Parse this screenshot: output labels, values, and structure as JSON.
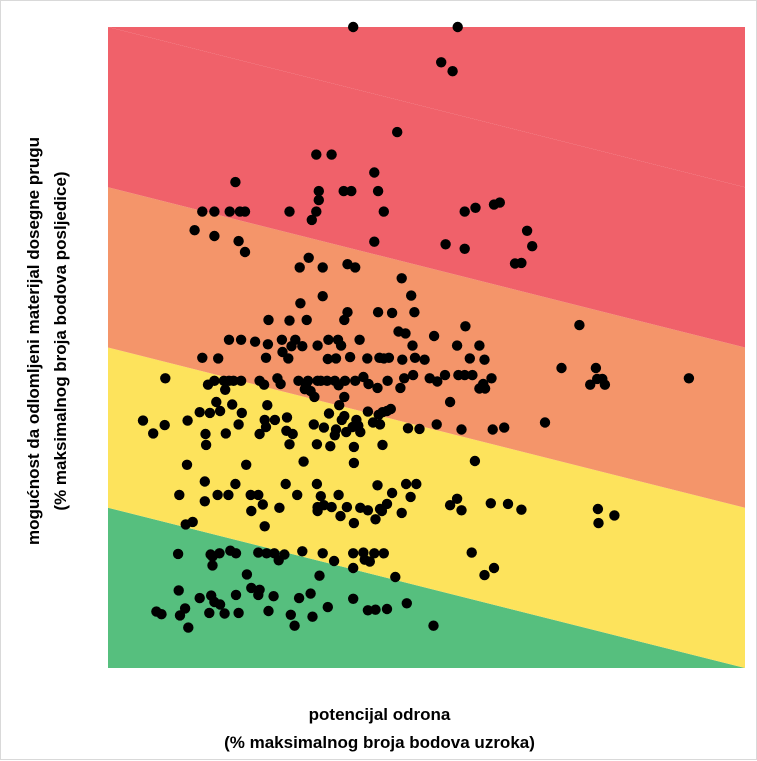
{
  "chart_data": {
    "type": "scatter",
    "title": "",
    "xlabel": [
      "potencijal odrona",
      "(% maksimalnog broja bodova uzroka)"
    ],
    "ylabel": [
      "mogućnost da odlomljeni materijal dosegne prugu",
      "(% maksimalnog broja bodova posljedice)"
    ],
    "xlim": [
      0,
      100
    ],
    "ylim": [
      0,
      100
    ],
    "grid": false,
    "legend": "none",
    "zones": [
      {
        "name": "green",
        "color": "#56bf7e",
        "left_y": 25,
        "right_y": 0
      },
      {
        "name": "yellow",
        "color": "#fde35c",
        "left_y": 50,
        "right_y": 25
      },
      {
        "name": "orange",
        "color": "#f4956a",
        "left_y": 75,
        "right_y": 50
      },
      {
        "name": "red",
        "color": "#f0616a",
        "left_y": 100,
        "right_y": 75
      }
    ],
    "marker_color": "#000000",
    "points": [
      [
        38.5,
        100
      ],
      [
        54.9,
        100
      ],
      [
        52.3,
        94.5
      ],
      [
        54.1,
        93.1
      ],
      [
        45.4,
        83.6
      ],
      [
        32.7,
        80.1
      ],
      [
        35.1,
        80.1
      ],
      [
        41.8,
        77.3
      ],
      [
        20,
        75.8
      ],
      [
        33.1,
        74.4
      ],
      [
        37,
        74.4
      ],
      [
        38.2,
        74.4
      ],
      [
        42.4,
        74.4
      ],
      [
        33.1,
        73
      ],
      [
        61.5,
        72.6
      ],
      [
        14.8,
        71.2
      ],
      [
        16.7,
        71.2
      ],
      [
        19.1,
        71.2
      ],
      [
        20.7,
        71.2
      ],
      [
        21.5,
        71.2
      ],
      [
        28.5,
        71.2
      ],
      [
        32.7,
        71.2
      ],
      [
        43.3,
        71.2
      ],
      [
        56,
        71.2
      ],
      [
        57.7,
        71.8
      ],
      [
        60.6,
        72.3
      ],
      [
        32,
        69.9
      ],
      [
        13.6,
        68.3
      ],
      [
        16.7,
        67.4
      ],
      [
        20.5,
        66.6
      ],
      [
        41.8,
        66.5
      ],
      [
        53,
        66.1
      ],
      [
        56,
        65.4
      ],
      [
        65.8,
        68.2
      ],
      [
        66.6,
        65.8
      ],
      [
        21.5,
        64.9
      ],
      [
        31.5,
        64
      ],
      [
        37.6,
        63
      ],
      [
        63.9,
        63.1
      ],
      [
        64.9,
        63.2
      ],
      [
        30.1,
        62.5
      ],
      [
        33.7,
        62.5
      ],
      [
        38.8,
        62.5
      ],
      [
        46.1,
        60.8
      ],
      [
        33.7,
        58
      ],
      [
        47.6,
        58.1
      ],
      [
        30.2,
        56.9
      ],
      [
        37.6,
        55.5
      ],
      [
        42.4,
        55.5
      ],
      [
        48.1,
        55.5
      ],
      [
        25.2,
        54.3
      ],
      [
        28.5,
        54.2
      ],
      [
        31.2,
        54.3
      ],
      [
        37.1,
        54.3
      ],
      [
        44.6,
        55.4
      ],
      [
        56.1,
        53.3
      ],
      [
        74,
        53.5
      ],
      [
        45.6,
        52.5
      ],
      [
        51.2,
        51.8
      ],
      [
        27.3,
        51.2
      ],
      [
        29.4,
        51.2
      ],
      [
        34.6,
        51.2
      ],
      [
        36.1,
        51.2
      ],
      [
        39.5,
        51.2
      ],
      [
        46.7,
        52.2
      ],
      [
        19,
        51.2
      ],
      [
        20.9,
        51.2
      ],
      [
        23.1,
        50.9
      ],
      [
        25.1,
        50.5
      ],
      [
        32.9,
        50.3
      ],
      [
        36.6,
        50.3
      ],
      [
        47.8,
        50.3
      ],
      [
        54.8,
        50.3
      ],
      [
        58.3,
        50.3
      ],
      [
        28.8,
        50.2
      ],
      [
        30.5,
        50.2
      ],
      [
        27.4,
        49.3
      ],
      [
        14.8,
        48.4
      ],
      [
        17.3,
        48.3
      ],
      [
        24.8,
        48.4
      ],
      [
        28.3,
        48.3
      ],
      [
        34.5,
        48.2
      ],
      [
        35.8,
        48.3
      ],
      [
        38,
        48.5
      ],
      [
        40.7,
        48.3
      ],
      [
        42.6,
        48.4
      ],
      [
        43.3,
        48.3
      ],
      [
        44.1,
        48.4
      ],
      [
        46.2,
        48.1
      ],
      [
        48.2,
        48.4
      ],
      [
        49.7,
        48.1
      ],
      [
        56.8,
        48.3
      ],
      [
        59.1,
        48.1
      ],
      [
        71.2,
        46.8
      ],
      [
        76.6,
        46.8
      ],
      [
        77.6,
        45.1
      ],
      [
        9,
        45.2
      ],
      [
        16.7,
        44.8
      ],
      [
        18.2,
        44.8
      ],
      [
        19,
        44.8
      ],
      [
        19.7,
        44.8
      ],
      [
        20.9,
        44.8
      ],
      [
        23.8,
        44.8
      ],
      [
        26.6,
        45.2
      ],
      [
        29.9,
        44.8
      ],
      [
        31.4,
        44.8
      ],
      [
        32.9,
        44.8
      ],
      [
        33.4,
        44.8
      ],
      [
        34.4,
        44.8
      ],
      [
        35.6,
        44.8
      ],
      [
        37.2,
        44.8
      ],
      [
        38.8,
        44.8
      ],
      [
        40.1,
        45.4
      ],
      [
        43.9,
        44.8
      ],
      [
        46.5,
        45.2
      ],
      [
        47.9,
        45.7
      ],
      [
        50.5,
        45.2
      ],
      [
        52.9,
        45.7
      ],
      [
        55,
        45.7
      ],
      [
        56,
        45.7
      ],
      [
        57.2,
        45.7
      ],
      [
        60.2,
        45.2
      ],
      [
        15.7,
        44.2
      ],
      [
        24.5,
        44.2
      ],
      [
        27.1,
        44.3
      ],
      [
        31.1,
        44.2
      ],
      [
        36.2,
        44.1
      ],
      [
        40.9,
        44.3
      ],
      [
        42.3,
        43.7
      ],
      [
        45.9,
        43.7
      ],
      [
        51.7,
        44.7
      ],
      [
        58.9,
        44.3
      ],
      [
        76.8,
        45.1
      ],
      [
        75.7,
        44.2
      ],
      [
        78,
        44.2
      ],
      [
        91.2,
        45.2
      ],
      [
        18.4,
        43.4
      ],
      [
        30.9,
        43.5
      ],
      [
        31.8,
        43.2
      ],
      [
        32.4,
        42.3
      ],
      [
        37.1,
        42.3
      ],
      [
        58.3,
        43.6
      ],
      [
        17,
        41.5
      ],
      [
        19.5,
        41.1
      ],
      [
        25,
        41
      ],
      [
        36.3,
        41
      ],
      [
        53.7,
        41.5
      ],
      [
        59.2,
        43.6
      ],
      [
        14.4,
        39.9
      ],
      [
        17.6,
        40.1
      ],
      [
        40.8,
        40
      ],
      [
        43.8,
        40.1
      ],
      [
        16,
        39.8
      ],
      [
        21,
        39.8
      ],
      [
        28.1,
        39.1
      ],
      [
        34.7,
        39.7
      ],
      [
        12.5,
        38.6
      ],
      [
        20.5,
        38
      ],
      [
        24.6,
        38.7
      ],
      [
        26.2,
        38.7
      ],
      [
        36.7,
        38.7
      ],
      [
        39,
        38.7
      ],
      [
        42.5,
        39.5
      ],
      [
        43.1,
        39.9
      ],
      [
        44.4,
        40.4
      ],
      [
        37.1,
        39.3
      ],
      [
        5.5,
        38.6
      ],
      [
        8.9,
        37.9
      ],
      [
        24.8,
        37.6
      ],
      [
        28,
        37
      ],
      [
        32.3,
        38
      ],
      [
        33.9,
        37.5
      ],
      [
        35.8,
        37.2
      ],
      [
        38.4,
        37.6
      ],
      [
        39.3,
        37.8
      ],
      [
        41.6,
        38.3
      ],
      [
        42.7,
        38
      ],
      [
        47.1,
        37.4
      ],
      [
        48.9,
        37.3
      ],
      [
        51.6,
        38
      ],
      [
        55.5,
        37.2
      ],
      [
        60.4,
        37.2
      ],
      [
        62.2,
        37.5
      ],
      [
        68.6,
        38.3
      ],
      [
        7.1,
        36.6
      ],
      [
        15.3,
        36.5
      ],
      [
        18.5,
        36.6
      ],
      [
        23.8,
        36.5
      ],
      [
        29,
        36.5
      ],
      [
        35.6,
        36.3
      ],
      [
        37.4,
        36.8
      ],
      [
        39.6,
        36.8
      ],
      [
        15.4,
        34.8
      ],
      [
        28.5,
        34.9
      ],
      [
        32.8,
        34.9
      ],
      [
        34.9,
        34.6
      ],
      [
        38.6,
        34.5
      ],
      [
        43.1,
        34.8
      ],
      [
        12.4,
        31.7
      ],
      [
        21.7,
        31.7
      ],
      [
        30.7,
        32.2
      ],
      [
        57.6,
        32.3
      ],
      [
        38.6,
        32
      ],
      [
        15.2,
        29.1
      ],
      [
        20,
        28.7
      ],
      [
        27.9,
        28.7
      ],
      [
        32.8,
        28.7
      ],
      [
        46.8,
        28.7
      ],
      [
        48.4,
        28.7
      ],
      [
        11.2,
        27
      ],
      [
        17.2,
        27
      ],
      [
        18.9,
        27
      ],
      [
        22.4,
        27
      ],
      [
        23.6,
        27
      ],
      [
        29.7,
        27
      ],
      [
        33.4,
        26.8
      ],
      [
        36.2,
        27
      ],
      [
        15.2,
        26
      ],
      [
        42.3,
        28.5
      ],
      [
        44.6,
        27.3
      ],
      [
        47.5,
        26.7
      ],
      [
        54.8,
        26.4
      ],
      [
        33.9,
        25.4
      ],
      [
        43.8,
        25.6
      ],
      [
        53.7,
        25.4
      ],
      [
        60.1,
        25.7
      ],
      [
        62.8,
        25.6
      ],
      [
        24.3,
        25.5
      ],
      [
        26.9,
        25
      ],
      [
        22.5,
        24.5
      ],
      [
        32.9,
        25.1
      ],
      [
        35.1,
        25.1
      ],
      [
        37.5,
        25.1
      ],
      [
        39.6,
        25
      ],
      [
        40.8,
        24.6
      ],
      [
        42.7,
        24.8
      ],
      [
        64.9,
        24.7
      ],
      [
        46.1,
        24.2
      ],
      [
        32.9,
        24.5
      ],
      [
        36.5,
        23.7
      ],
      [
        38.6,
        22.6
      ],
      [
        43,
        24.5
      ],
      [
        55.5,
        24.6
      ],
      [
        42,
        23.2
      ],
      [
        13.3,
        22.8
      ],
      [
        12.2,
        22.4
      ],
      [
        24.6,
        22.1
      ],
      [
        76.9,
        24.8
      ],
      [
        79.5,
        23.8
      ],
      [
        77,
        22.6
      ],
      [
        11,
        17.8
      ],
      [
        16.1,
        17.7
      ],
      [
        17.5,
        17.9
      ],
      [
        19.2,
        18.3
      ],
      [
        20.1,
        17.9
      ],
      [
        23.6,
        18
      ],
      [
        24.9,
        17.9
      ],
      [
        26.1,
        17.9
      ],
      [
        27.7,
        17.7
      ],
      [
        30.5,
        18.2
      ],
      [
        33.7,
        17.9
      ],
      [
        38.5,
        17.9
      ],
      [
        40.1,
        18
      ],
      [
        41.8,
        17.9
      ],
      [
        43.3,
        17.9
      ],
      [
        57.1,
        18
      ],
      [
        16.4,
        17.4
      ],
      [
        40.3,
        16.9
      ],
      [
        41.1,
        16.6
      ],
      [
        16.4,
        16
      ],
      [
        38.5,
        15.6
      ],
      [
        60.6,
        15.6
      ],
      [
        33.2,
        14.4
      ],
      [
        59.1,
        14.5
      ],
      [
        20.1,
        11.4
      ],
      [
        23.6,
        11.4
      ],
      [
        16.2,
        11.3
      ],
      [
        26,
        11.2
      ],
      [
        30,
        10.9
      ],
      [
        38.5,
        10.8
      ],
      [
        15.9,
        8.6
      ],
      [
        18.3,
        8.5
      ],
      [
        42,
        9.1
      ],
      [
        25.2,
        8.9
      ],
      [
        28.7,
        8.3
      ],
      [
        32.1,
        8
      ],
      [
        34.5,
        9.5
      ],
      [
        43.8,
        9.2
      ],
      [
        46.9,
        10.1
      ],
      [
        8.4,
        8.4
      ],
      [
        12.6,
        6.3
      ],
      [
        20.5,
        8.6
      ],
      [
        11.3,
        8.2
      ],
      [
        17.6,
        9.9
      ],
      [
        14.4,
        10.9
      ],
      [
        12.1,
        9.3
      ],
      [
        29.3,
        6.6
      ],
      [
        40.8,
        9
      ],
      [
        51.1,
        6.6
      ],
      [
        7.6,
        8.8
      ],
      [
        16.7,
        10.3
      ],
      [
        11.1,
        12.1
      ],
      [
        23.8,
        12.2
      ],
      [
        22.5,
        12.5
      ],
      [
        31.8,
        11.6
      ],
      [
        26.8,
        16.8
      ],
      [
        35.5,
        16.7
      ],
      [
        45.1,
        14.2
      ],
      [
        21.8,
        14.6
      ]
    ]
  }
}
